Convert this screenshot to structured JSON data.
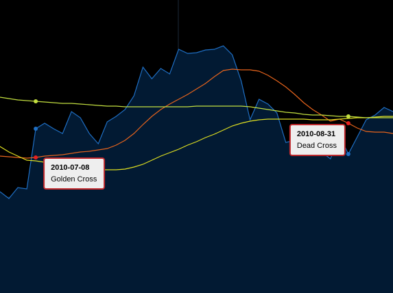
{
  "chart_data": {
    "type": "line",
    "categories": [
      null,
      null,
      null,
      null,
      "2010-07-08",
      null,
      null,
      null,
      null,
      null,
      null,
      null,
      null,
      null,
      null,
      null,
      null,
      null,
      null,
      null,
      null,
      null,
      null,
      null,
      null,
      null,
      null,
      null,
      null,
      null,
      null,
      null,
      null,
      null,
      null,
      null,
      null,
      null,
      null,
      "2010-08-31",
      null,
      null,
      null,
      null,
      null
    ],
    "annotations": [
      null,
      null,
      null,
      null,
      "Golden Cross",
      null,
      null,
      null,
      null,
      null,
      null,
      null,
      null,
      null,
      null,
      null,
      null,
      null,
      null,
      null,
      null,
      null,
      null,
      null,
      null,
      null,
      null,
      null,
      null,
      null,
      null,
      null,
      null,
      null,
      null,
      null,
      null,
      null,
      null,
      "Dead Cross",
      null,
      null,
      null,
      null,
      null
    ],
    "ylim": [
      0,
      428
    ],
    "series": [
      {
        "color": "#1f6fc4",
        "area": "#021a33",
        "values": [
          148,
          138,
          154,
          152,
          240,
          248,
          240,
          233,
          265,
          256,
          233,
          218,
          250,
          258,
          268,
          288,
          330,
          313,
          328,
          320,
          356,
          350,
          351,
          355,
          356,
          361,
          348,
          310,
          253,
          283,
          276,
          263,
          220,
          223,
          218,
          213,
          206,
          196,
          230,
          203,
          228,
          253,
          260,
          271,
          265
        ]
      },
      {
        "color": "#e8641c",
        "values": [
          200,
          199,
          198,
          197,
          198,
          200,
          201,
          202,
          204,
          206,
          207,
          209,
          211,
          216,
          223,
          233,
          246,
          258,
          268,
          276,
          283,
          290,
          298,
          306,
          316,
          325,
          327,
          326,
          326,
          324,
          318,
          310,
          301,
          290,
          278,
          268,
          260,
          251,
          254,
          248,
          241,
          236,
          235,
          235,
          233
        ]
      },
      {
        "color": "#e0e020",
        "values": [
          214,
          206,
          200,
          194,
          193,
          191,
          188,
          185,
          183,
          182,
          181,
          180,
          180,
          180,
          181,
          184,
          188,
          194,
          200,
          205,
          210,
          216,
          221,
          227,
          232,
          238,
          244,
          248,
          251,
          253,
          254,
          254,
          254,
          254,
          254,
          253,
          253,
          253,
          254,
          255,
          256,
          256,
          257,
          258,
          258
        ]
      },
      {
        "color": "#c4e040",
        "values": [
          286,
          284,
          282,
          281,
          280,
          279,
          278,
          277,
          277,
          276,
          275,
          274,
          273,
          273,
          272,
          272,
          272,
          272,
          272,
          272,
          272,
          272,
          273,
          273,
          273,
          273,
          273,
          273,
          272,
          270,
          268,
          266,
          264,
          263,
          261,
          260,
          260,
          259,
          258,
          258,
          257,
          256,
          256,
          256,
          256
        ]
      }
    ]
  }
}
